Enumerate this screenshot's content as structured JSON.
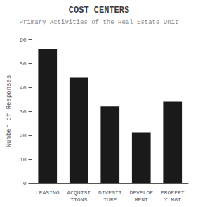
{
  "chart_data": {
    "type": "bar",
    "title": "COST CENTERS",
    "subtitle": "Primary Activities of the Real Estate Unit",
    "categories": [
      "LEASING",
      "ACQUISI\nTIONS",
      "DIVESTI\nTURE",
      "DEVELOP\nMENT",
      "PROPERT\nY MGT"
    ],
    "values": [
      56,
      44,
      32,
      21,
      34
    ],
    "color": "#1a1a1a",
    "ylabel": "Number of Responses",
    "ylim": [
      0,
      60
    ],
    "yticks": [
      0,
      10,
      20,
      30,
      40,
      50,
      60
    ],
    "grid": false
  }
}
